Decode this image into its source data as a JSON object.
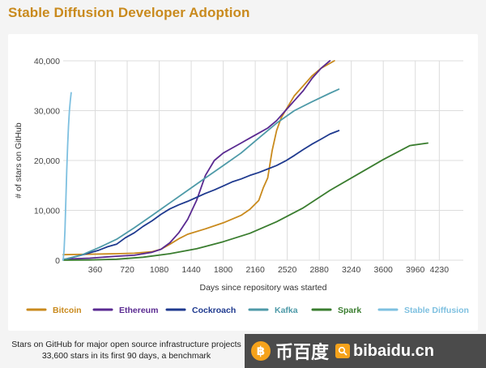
{
  "page": {
    "title": "Stable Diffusion Developer Adoption",
    "caption_line1": "Stars on GitHub for major open source infrastructure projects",
    "caption_line2": "33,600 stars in its first 90 days, a benchmark"
  },
  "watermark": {
    "logo_char": "฿",
    "cn_text": "币百度",
    "domain": "bibaidu.cn"
  },
  "chart_data": {
    "type": "line",
    "title": "Stable Diffusion Developer Adoption",
    "xlabel": "Days since repository was started",
    "ylabel": "# of stars on GitHub",
    "xlim": [
      0,
      4500
    ],
    "ylim": [
      0,
      40000
    ],
    "x_ticks": [
      360,
      720,
      1080,
      1440,
      1800,
      2160,
      2520,
      2880,
      3240,
      3600,
      3960,
      4230
    ],
    "y_ticks": [
      0,
      10000,
      20000,
      30000,
      40000
    ],
    "y_tick_labels": [
      "0",
      "10,000",
      "20,000",
      "30,000",
      "40,000"
    ],
    "grid": true,
    "legend_position": "bottom",
    "series": [
      {
        "name": "Bitcoin",
        "color": "#c98a1d",
        "x": [
          0,
          300,
          600,
          800,
          1000,
          1100,
          1200,
          1300,
          1400,
          1600,
          1800,
          2000,
          2100,
          2200,
          2250,
          2300,
          2350,
          2400,
          2450,
          2500,
          2600,
          2700,
          2800,
          2900,
          3000,
          3050
        ],
        "y": [
          1100,
          1200,
          1300,
          1400,
          1700,
          2200,
          3200,
          4300,
          5200,
          6300,
          7500,
          9000,
          10200,
          12000,
          14500,
          16500,
          22000,
          26000,
          28500,
          30000,
          33000,
          35000,
          37000,
          38500,
          39500,
          40000
        ]
      },
      {
        "name": "Ethereum",
        "color": "#5a2a91",
        "x": [
          0,
          300,
          600,
          800,
          1000,
          1100,
          1200,
          1300,
          1400,
          1500,
          1600,
          1700,
          1800,
          1900,
          2000,
          2100,
          2200,
          2300,
          2400,
          2500,
          2600,
          2700,
          2800,
          2900,
          3000
        ],
        "y": [
          200,
          400,
          800,
          1000,
          1600,
          2200,
          3500,
          5500,
          8200,
          12000,
          17000,
          20000,
          21500,
          22500,
          23500,
          24500,
          25500,
          26500,
          28000,
          30000,
          32000,
          34000,
          36500,
          38500,
          40000
        ]
      },
      {
        "name": "Cockroach",
        "color": "#1f3a8f",
        "x": [
          0,
          200,
          400,
          500,
          600,
          700,
          800,
          900,
          1000,
          1100,
          1200,
          1300,
          1400,
          1500,
          1600,
          1700,
          1800,
          1900,
          2000,
          2100,
          2200,
          2300,
          2400,
          2500,
          2600,
          2700,
          2800,
          2900,
          3000,
          3100
        ],
        "y": [
          100,
          1000,
          2000,
          2700,
          3200,
          4500,
          5500,
          6800,
          7900,
          9200,
          10300,
          11100,
          11800,
          12600,
          13400,
          14100,
          14900,
          15700,
          16300,
          17000,
          17600,
          18300,
          19000,
          19900,
          21000,
          22200,
          23300,
          24300,
          25300,
          26000
        ]
      },
      {
        "name": "Kafka",
        "color": "#4e9aa8",
        "x": [
          0,
          200,
          400,
          600,
          800,
          1000,
          1200,
          1400,
          1600,
          1800,
          2000,
          2200,
          2400,
          2600,
          2800,
          3000,
          3100
        ],
        "y": [
          100,
          1000,
          2500,
          4200,
          6500,
          9000,
          11500,
          14000,
          16500,
          19000,
          21500,
          24500,
          27500,
          30000,
          31800,
          33500,
          34300
        ]
      },
      {
        "name": "Spark",
        "color": "#3a7d2f",
        "x": [
          0,
          300,
          600,
          900,
          1200,
          1500,
          1800,
          2100,
          2400,
          2700,
          3000,
          3300,
          3600,
          3900,
          4100
        ],
        "y": [
          0,
          50,
          200,
          600,
          1300,
          2300,
          3700,
          5400,
          7700,
          10500,
          14000,
          17100,
          20200,
          23000,
          23500
        ]
      },
      {
        "name": "Stable Diffusion",
        "color": "#7ec0e0",
        "x": [
          0,
          10,
          20,
          30,
          40,
          50,
          60,
          70,
          80,
          90
        ],
        "y": [
          0,
          2000,
          6000,
          12000,
          18000,
          23000,
          27000,
          30000,
          32000,
          33600
        ]
      }
    ]
  }
}
